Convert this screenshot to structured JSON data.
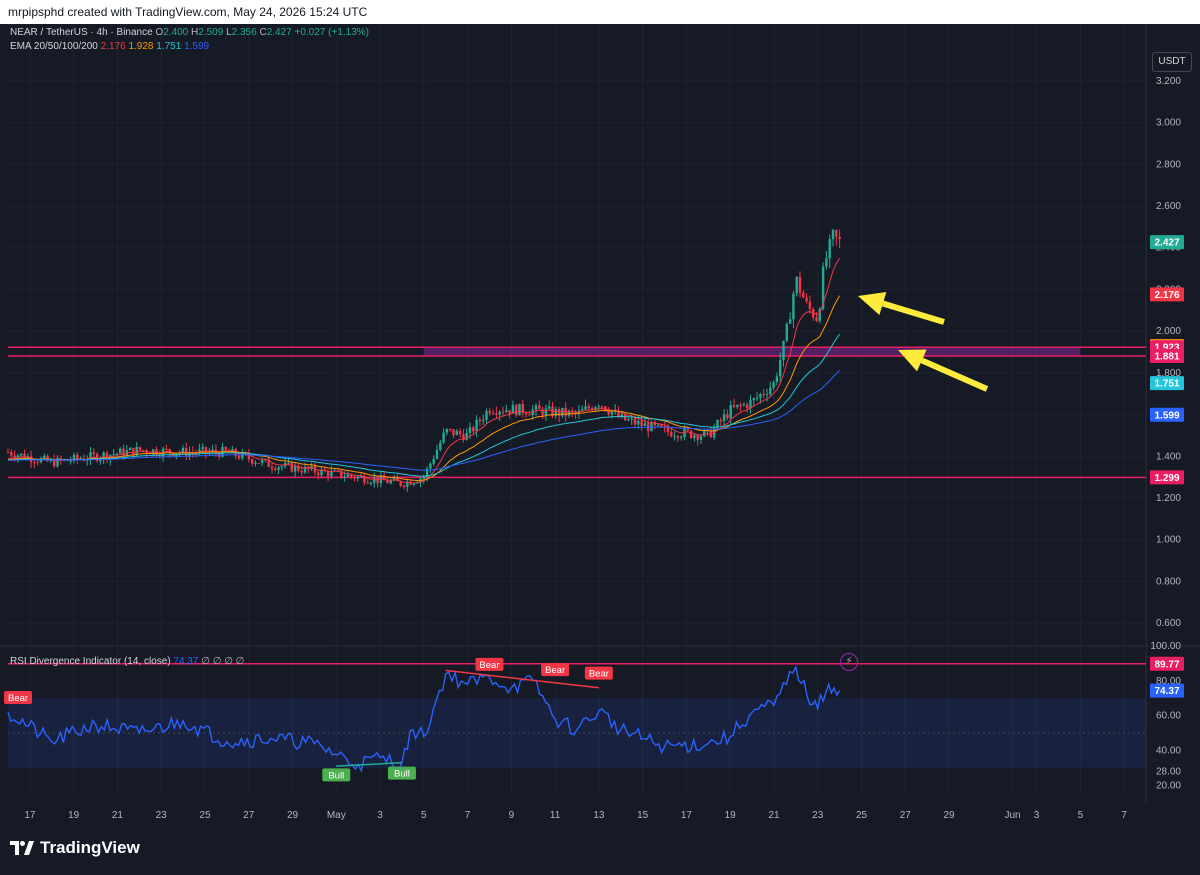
{
  "header": {
    "attribution": "mrpipsphd created with TradingView.com, May 24, 2026 15:24 UTC"
  },
  "legend": {
    "symbol": "NEAR / TetherUS · 4h · Binance",
    "o_label": "O",
    "o_value": "2.400",
    "h_label": "H",
    "h_value": "2.509",
    "l_label": "L",
    "l_value": "2.356",
    "c_label": "C",
    "c_value": "2.427",
    "change": "+0.027 (+1.13%)",
    "ema_label": "EMA 20/50/100/200",
    "ema20": "2.176",
    "ema50": "1.928",
    "ema100": "1.751",
    "ema200": "1.599"
  },
  "currency_button": "USDT",
  "rsi_legend": {
    "label": "RSI Divergence Indicator (14, close)",
    "value": "74.37",
    "extras": "∅  ∅  ∅  ∅"
  },
  "branding": {
    "logo_text": "TradingView",
    "logo_icon": "tradingview-logo-icon",
    "bolt_icon": "lightning-icon"
  },
  "colors": {
    "background": "#161a25",
    "grid": "#1f2330",
    "up": "#22ab94",
    "down": "#f23645",
    "ema20": "#f23645",
    "ema50": "#ff9800",
    "ema100": "#26c6da",
    "ema200": "#2962ff",
    "level_line": "#e91e63",
    "zone": "#9c27b0",
    "rsi": "#2962ff",
    "arrow": "#ffeb3b"
  },
  "chart_data": {
    "type": "candlestick",
    "symbol": "NEAR / TetherUS",
    "timeframe": "4h",
    "ylim": [
      0.5,
      3.3
    ],
    "y_ticks": [
      "3.200",
      "3.000",
      "2.800",
      "2.600",
      "2.400",
      "2.200",
      "2.000",
      "1.800",
      "1.600",
      "1.400",
      "1.200",
      "1.000",
      "0.800",
      "0.600"
    ],
    "x_ticks": [
      "17",
      "19",
      "21",
      "23",
      "25",
      "27",
      "29",
      "May",
      "3",
      "5",
      "7",
      "9",
      "11",
      "13",
      "15",
      "17",
      "19",
      "21",
      "23",
      "25",
      "27",
      "29",
      "Jun",
      "3",
      "5",
      "7"
    ],
    "price_path": [
      {
        "date": "Apr 16",
        "close": 1.42
      },
      {
        "date": "Apr 18",
        "close": 1.37
      },
      {
        "date": "Apr 20",
        "close": 1.4
      },
      {
        "date": "Apr 22",
        "close": 1.43
      },
      {
        "date": "Apr 24",
        "close": 1.42
      },
      {
        "date": "Apr 26",
        "close": 1.42
      },
      {
        "date": "Apr 28",
        "close": 1.36
      },
      {
        "date": "Apr 30",
        "close": 1.33
      },
      {
        "date": "May 2",
        "close": 1.3
      },
      {
        "date": "May 4",
        "close": 1.27
      },
      {
        "date": "May 5",
        "close": 1.3
      },
      {
        "date": "May 6",
        "close": 1.52
      },
      {
        "date": "May 7",
        "close": 1.5
      },
      {
        "date": "May 8",
        "close": 1.63
      },
      {
        "date": "May 10",
        "close": 1.62
      },
      {
        "date": "May 12",
        "close": 1.6
      },
      {
        "date": "May 13",
        "close": 1.66
      },
      {
        "date": "May 14",
        "close": 1.58
      },
      {
        "date": "May 16",
        "close": 1.52
      },
      {
        "date": "May 18",
        "close": 1.5
      },
      {
        "date": "May 19",
        "close": 1.62
      },
      {
        "date": "May 20",
        "close": 1.66
      },
      {
        "date": "May 21",
        "close": 1.75
      },
      {
        "date": "May 21.5",
        "close": 1.95
      },
      {
        "date": "May 22",
        "close": 2.25
      },
      {
        "date": "May 22.5",
        "close": 2.12
      },
      {
        "date": "May 23",
        "close": 2.06
      },
      {
        "date": "May 23.3",
        "close": 2.32
      },
      {
        "date": "May 23.7",
        "close": 2.45
      },
      {
        "date": "May 24",
        "close": 2.427
      }
    ],
    "ema": [
      {
        "name": "EMA 20",
        "last": 2.176
      },
      {
        "name": "EMA 50",
        "last": 1.928
      },
      {
        "name": "EMA 100",
        "last": 1.751
      },
      {
        "name": "EMA 200",
        "last": 1.599
      }
    ],
    "levels": [
      {
        "value": 1.923,
        "label": "1.923"
      },
      {
        "value": 1.881,
        "label": "1.881"
      },
      {
        "value": 1.299,
        "label": "1.299"
      }
    ],
    "zone": [
      1.881,
      1.923
    ],
    "price_labels": [
      {
        "value": 2.427,
        "label": "2.427",
        "color": "#22ab94"
      },
      {
        "value": 2.176,
        "label": "2.176",
        "color": "#f23645"
      },
      {
        "value": 1.928,
        "label": "1.928",
        "color": "#ff9800"
      },
      {
        "value": 1.923,
        "label": "1.923",
        "color": "#e91e63"
      },
      {
        "value": 1.881,
        "label": "1.881",
        "color": "#e91e63"
      },
      {
        "value": 1.751,
        "label": "1.751",
        "color": "#26c6da"
      },
      {
        "value": 1.599,
        "label": "1.599",
        "color": "#2962ff"
      },
      {
        "value": 1.299,
        "label": "1.299",
        "color": "#e91e63"
      }
    ],
    "rsi": {
      "ylim": [
        15,
        100
      ],
      "y_ticks": [
        "100.00",
        "80.00",
        "60.00",
        "40.00",
        "28.00",
        "20.00"
      ],
      "bands": [
        70,
        30
      ],
      "midline": 50,
      "upper_level": {
        "value": 89.77,
        "label": "89.77"
      },
      "current": {
        "value": 74.37,
        "label": "74.37"
      },
      "path": [
        {
          "date": "Apr 16",
          "value": 62
        },
        {
          "date": "Apr 18",
          "value": 45
        },
        {
          "date": "Apr 20",
          "value": 55
        },
        {
          "date": "Apr 22",
          "value": 50
        },
        {
          "date": "Apr 24",
          "value": 57
        },
        {
          "date": "Apr 26",
          "value": 45
        },
        {
          "date": "Apr 28",
          "value": 47
        },
        {
          "date": "Apr 30",
          "value": 44
        },
        {
          "date": "May 2",
          "value": 32
        },
        {
          "date": "May 3",
          "value": 36
        },
        {
          "date": "May 4",
          "value": 33
        },
        {
          "date": "May 4.5",
          "value": 52
        },
        {
          "date": "May 5",
          "value": 48
        },
        {
          "date": "May 6",
          "value": 84
        },
        {
          "date": "May 7",
          "value": 78
        },
        {
          "date": "May 8",
          "value": 82
        },
        {
          "date": "May 9",
          "value": 76
        },
        {
          "date": "May 10",
          "value": 80
        },
        {
          "date": "May 11",
          "value": 58
        },
        {
          "date": "May 12",
          "value": 52
        },
        {
          "date": "May 13",
          "value": 63
        },
        {
          "date": "May 14",
          "value": 52
        },
        {
          "date": "May 16",
          "value": 42
        },
        {
          "date": "May 18",
          "value": 44
        },
        {
          "date": "May 19",
          "value": 48
        },
        {
          "date": "May 20",
          "value": 62
        },
        {
          "date": "May 21",
          "value": 66
        },
        {
          "date": "May 22",
          "value": 88
        },
        {
          "date": "May 22.5",
          "value": 72
        },
        {
          "date": "May 23",
          "value": 64
        },
        {
          "date": "May 23.5",
          "value": 78
        },
        {
          "date": "May 24",
          "value": 74.37
        }
      ],
      "divergences": [
        {
          "type": "Bear",
          "label": "Bear",
          "date": "Apr 16",
          "value": 65
        },
        {
          "type": "Bear",
          "label": "Bear",
          "date": "May 8",
          "value": 84
        },
        {
          "type": "Bear",
          "label": "Bear",
          "date": "May 11",
          "value": 81
        },
        {
          "type": "Bear",
          "label": "Bear",
          "date": "May 13",
          "value": 79
        },
        {
          "type": "Bull",
          "label": "Bull",
          "date": "May 1",
          "value": 32
        },
        {
          "type": "Bull",
          "label": "Bull",
          "date": "May 4",
          "value": 33
        }
      ]
    }
  }
}
